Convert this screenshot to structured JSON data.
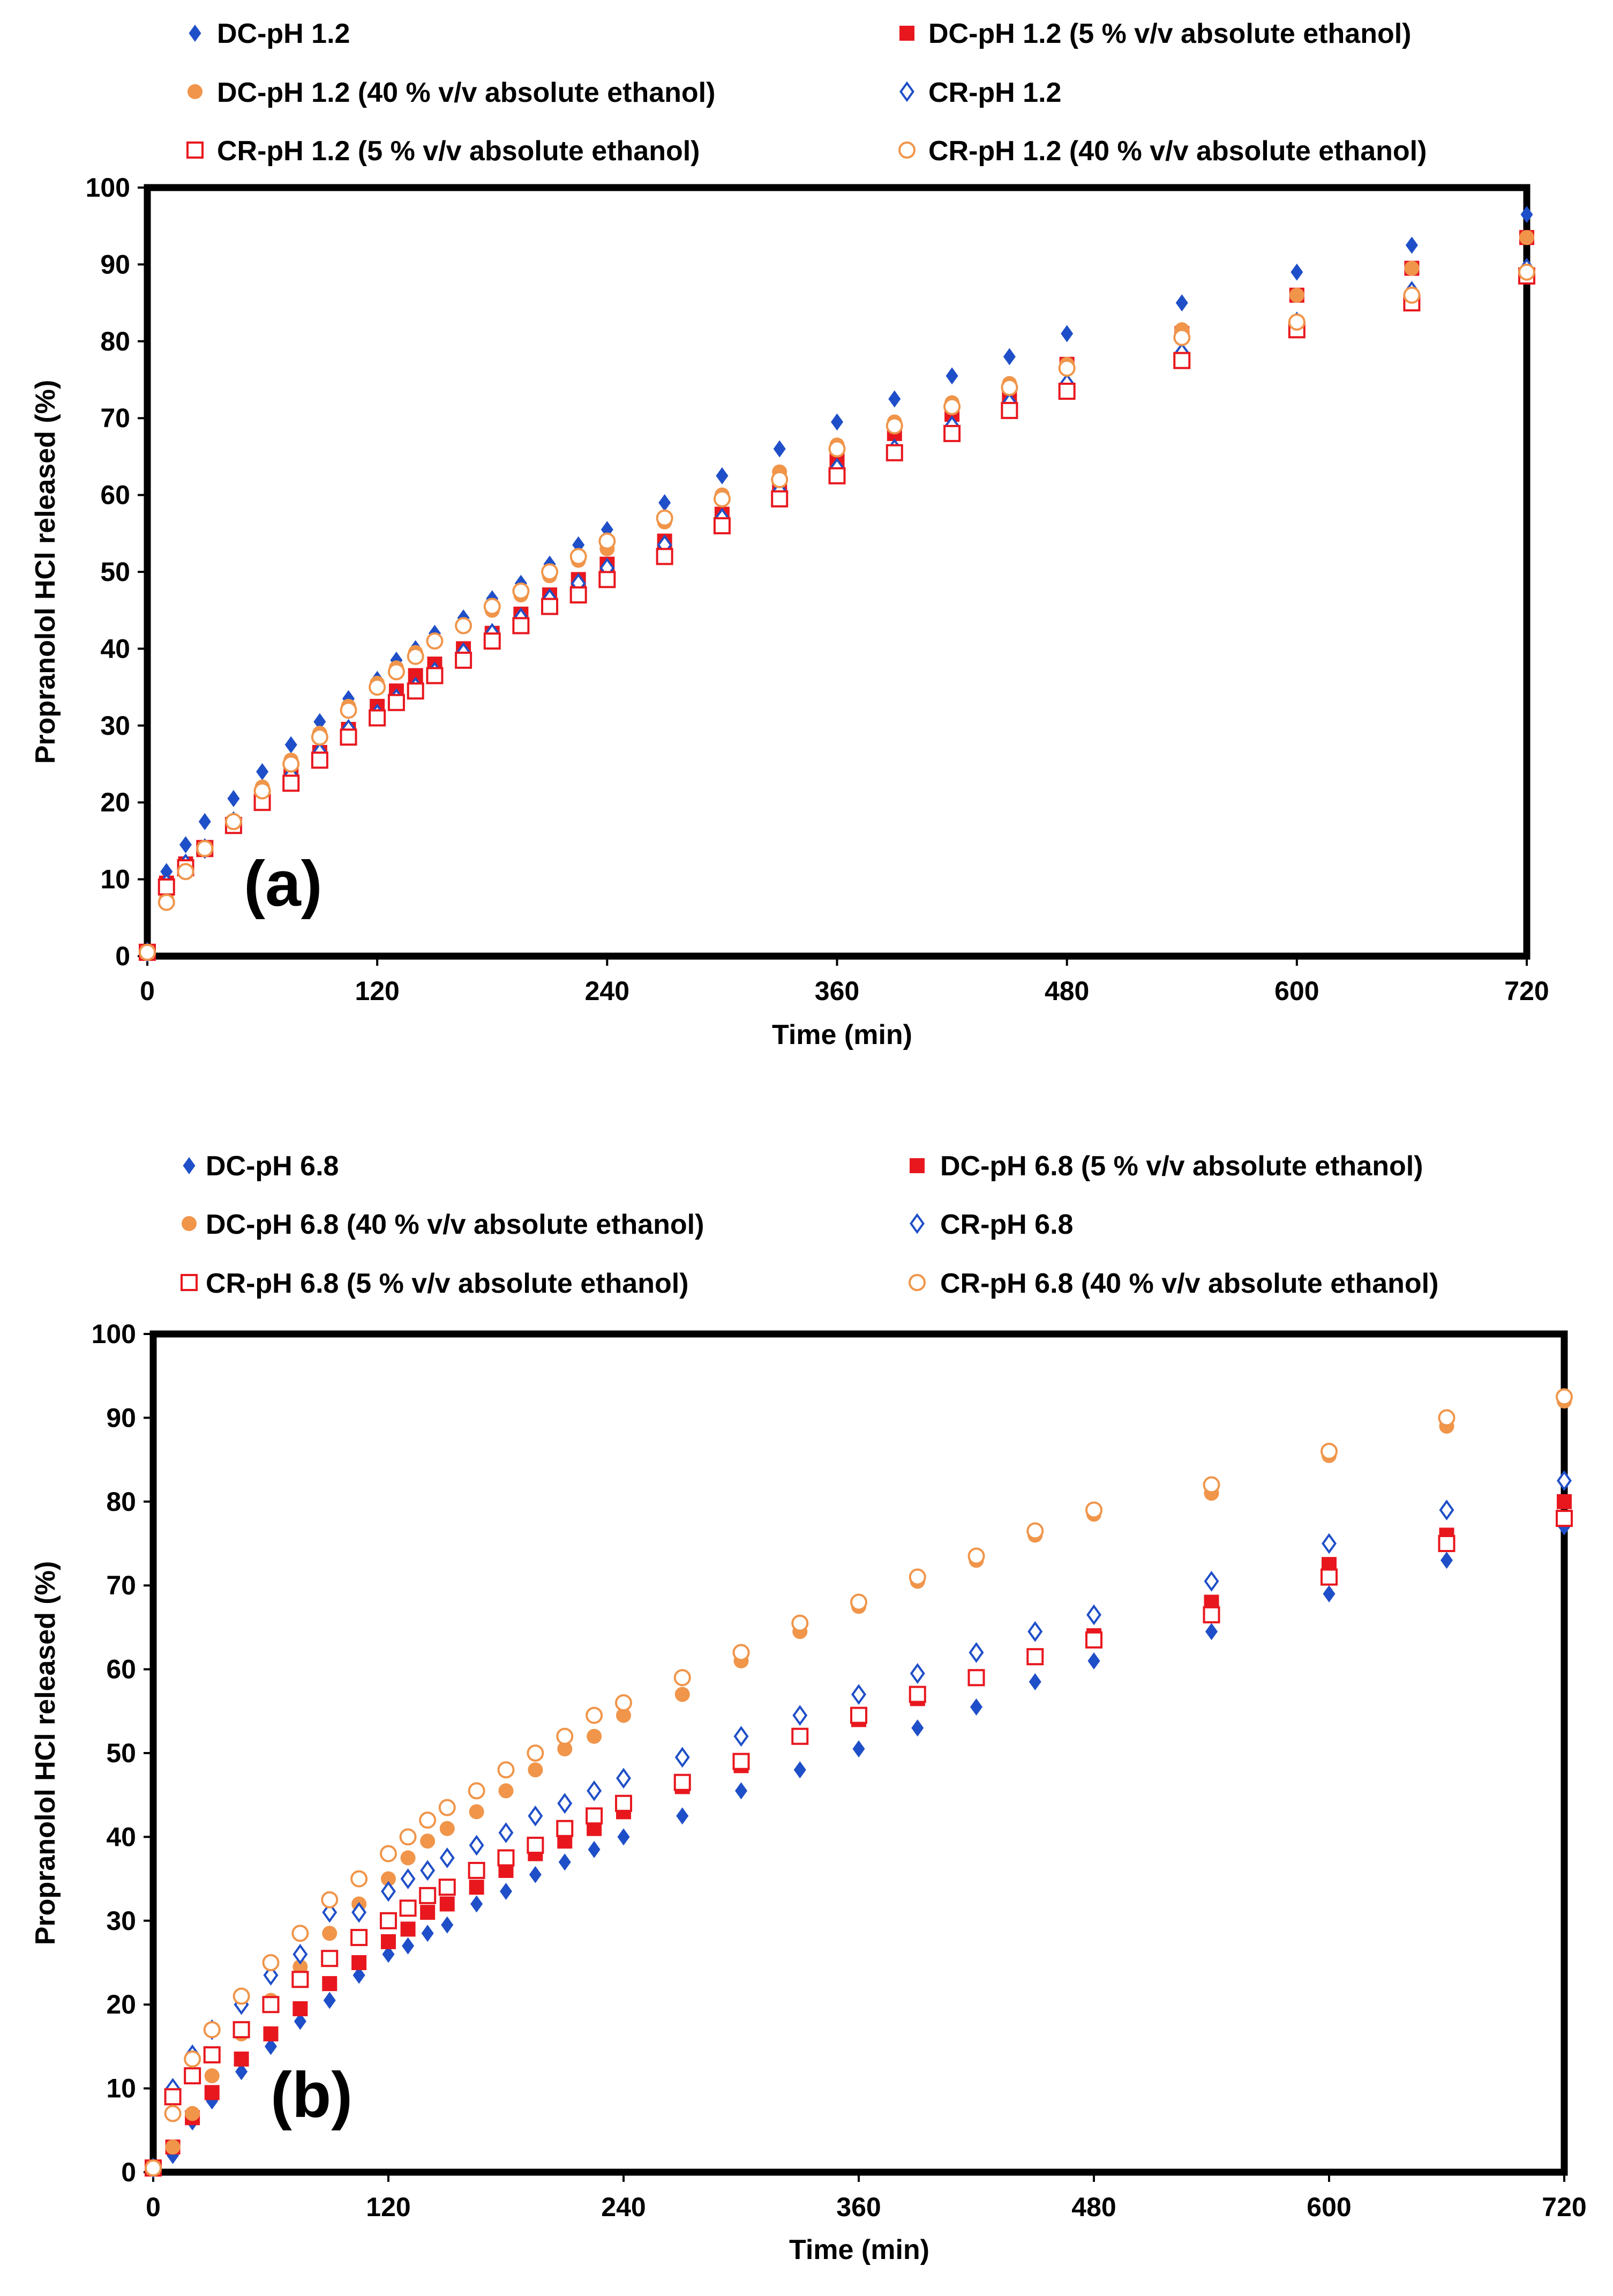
{
  "colors": {
    "blue": "#1F4FC8",
    "red": "#E8171E",
    "orange": "#F0954A",
    "axis": "#000000"
  },
  "chart_data": [
    {
      "type": "scatter",
      "panel_label": "(a)",
      "xlabel": "Time (min)",
      "ylabel": "Propranolol HCl released (%)",
      "xlim": [
        0,
        720
      ],
      "ylim": [
        0,
        100
      ],
      "xticks": [
        "0",
        "120",
        "240",
        "360",
        "480",
        "600",
        "720"
      ],
      "yticks": [
        "0",
        "10",
        "20",
        "30",
        "40",
        "50",
        "60",
        "70",
        "80",
        "90",
        "100"
      ],
      "x": [
        0,
        10,
        20,
        30,
        45,
        60,
        75,
        90,
        105,
        120,
        130,
        140,
        150,
        165,
        180,
        195,
        210,
        225,
        240,
        270,
        300,
        330,
        360,
        390,
        420,
        450,
        480,
        540,
        600,
        660,
        720
      ],
      "series": [
        {
          "name": "DC-pH 1.2",
          "marker": "diamond-filled",
          "color": "#1F4FC8",
          "values": [
            0.5,
            11,
            14.5,
            17.5,
            20.5,
            24,
            27.5,
            30.5,
            33.5,
            36,
            38.5,
            40,
            42,
            44,
            46.5,
            48.5,
            51,
            53.5,
            55.5,
            59,
            62.5,
            66,
            69.5,
            72.5,
            75.5,
            78,
            81,
            85,
            89,
            92.5,
            96.5
          ]
        },
        {
          "name": "DC-pH 1.2 (5 % v/v absolute ethanol)",
          "marker": "square-filled",
          "color": "#E8171E",
          "values": [
            0.5,
            9.5,
            12,
            14,
            17,
            20,
            23.5,
            26.5,
            29.5,
            32.5,
            34.5,
            36.5,
            38,
            40,
            42,
            44.5,
            47,
            49,
            51,
            54,
            57.5,
            61,
            64.5,
            68,
            70.5,
            72.5,
            77,
            81,
            86,
            89.5,
            93.5
          ]
        },
        {
          "name": "DC-pH 1.2 (40 % v/v absolute ethanol)",
          "marker": "circle-filled",
          "color": "#F0954A",
          "values": [
            0.5,
            7.5,
            11,
            14,
            17.5,
            22,
            25.5,
            29,
            32.5,
            35.5,
            37.5,
            39.5,
            41,
            43,
            45,
            47,
            49.5,
            51.5,
            53,
            56.5,
            60,
            63,
            66.5,
            69.5,
            72,
            74.5,
            77,
            81.5,
            86,
            89.5,
            93.5
          ]
        },
        {
          "name": "CR-pH 1.2",
          "marker": "diamond-open",
          "color": "#1F4FC8",
          "values": [
            0.5,
            9.5,
            12,
            14,
            17.5,
            21,
            23.5,
            26.5,
            29.5,
            31.5,
            33.5,
            35,
            37,
            39.5,
            42,
            44,
            46.5,
            48.5,
            50.5,
            53.5,
            57,
            60.5,
            63.5,
            66,
            69,
            72,
            74.5,
            78.5,
            82.5,
            86.5,
            89.5
          ]
        },
        {
          "name": "CR-pH 1.2 (5 % v/v absolute ethanol)",
          "marker": "square-open",
          "color": "#E8171E",
          "values": [
            0.5,
            9,
            11.5,
            14,
            17,
            20,
            22.5,
            25.5,
            28.5,
            31,
            33,
            34.5,
            36.5,
            38.5,
            41,
            43,
            45.5,
            47,
            49,
            52,
            56,
            59.5,
            62.5,
            65.5,
            68,
            71,
            73.5,
            77.5,
            81.5,
            85,
            88.5
          ]
        },
        {
          "name": "CR-pH 1.2 (40 % v/v absolute ethanol)",
          "marker": "circle-open",
          "color": "#F0954A",
          "values": [
            0.5,
            7,
            11,
            14,
            17.5,
            21.5,
            25,
            28.5,
            32,
            35,
            37,
            39,
            41,
            43,
            45.5,
            47.5,
            50,
            52,
            54,
            57,
            59.5,
            62,
            66,
            69,
            71.5,
            74,
            76.5,
            80.5,
            82.5,
            86,
            89
          ]
        }
      ]
    },
    {
      "type": "scatter",
      "panel_label": "(b)",
      "xlabel": "Time (min)",
      "ylabel": "Propranolol HCl released (%)",
      "xlim": [
        0,
        720
      ],
      "ylim": [
        0,
        100
      ],
      "xticks": [
        "0",
        "120",
        "240",
        "360",
        "480",
        "600",
        "720"
      ],
      "yticks": [
        "0",
        "10",
        "20",
        "30",
        "40",
        "50",
        "60",
        "70",
        "80",
        "90",
        "100"
      ],
      "x": [
        0,
        10,
        20,
        30,
        45,
        60,
        75,
        90,
        105,
        120,
        130,
        140,
        150,
        165,
        180,
        195,
        210,
        225,
        240,
        270,
        300,
        330,
        360,
        390,
        420,
        450,
        480,
        540,
        600,
        660,
        720
      ],
      "series": [
        {
          "name": "DC-pH 6.8",
          "marker": "diamond-filled",
          "color": "#1F4FC8",
          "values": [
            0.5,
            2,
            6,
            8.5,
            12,
            15,
            18,
            20.5,
            23.5,
            26,
            27,
            28.5,
            29.5,
            32,
            33.5,
            35.5,
            37,
            38.5,
            40,
            42.5,
            45.5,
            48,
            50.5,
            53,
            55.5,
            58.5,
            61,
            64.5,
            69,
            73,
            77
          ]
        },
        {
          "name": "DC-pH 6.8 (5 % v/v absolute ethanol)",
          "marker": "square-filled",
          "color": "#E8171E",
          "values": [
            0.5,
            3,
            6.5,
            9.5,
            13.5,
            16.5,
            19.5,
            22.5,
            25,
            27.5,
            29,
            31,
            32,
            34,
            36,
            38,
            39.5,
            41,
            43,
            46,
            48.5,
            52,
            54,
            56.5,
            59,
            61.5,
            64,
            68,
            72.5,
            76,
            80
          ]
        },
        {
          "name": "DC-pH 6.8 (40 % v/v absolute ethanol)",
          "marker": "circle-filled",
          "color": "#F0954A",
          "values": [
            0.5,
            3,
            7,
            11.5,
            16.5,
            20.5,
            24.5,
            28.5,
            32,
            35,
            37.5,
            39.5,
            41,
            43,
            45.5,
            48,
            50.5,
            52,
            54.5,
            57,
            61,
            64.5,
            67.5,
            70.5,
            73,
            76,
            78.5,
            81,
            85.5,
            89,
            92
          ]
        },
        {
          "name": "CR-pH 6.8",
          "marker": "diamond-open",
          "color": "#1F4FC8",
          "values": [
            0.5,
            10,
            14,
            17,
            20,
            23.5,
            26,
            31,
            31,
            33.5,
            35,
            36,
            37.5,
            39,
            40.5,
            42.5,
            44,
            45.5,
            47,
            49.5,
            52,
            54.5,
            57,
            59.5,
            62,
            64.5,
            66.5,
            70.5,
            75,
            79,
            82.5
          ]
        },
        {
          "name": "CR-pH 6.8 (5 % v/v absolute ethanol)",
          "marker": "square-open",
          "color": "#E8171E",
          "values": [
            0.5,
            9,
            11.5,
            14,
            17,
            20,
            23,
            25.5,
            28,
            30,
            31.5,
            33,
            34,
            36,
            37.5,
            39,
            41,
            42.5,
            44,
            46.5,
            49,
            52,
            54.5,
            57,
            59,
            61.5,
            63.5,
            66.5,
            71,
            75,
            78
          ]
        },
        {
          "name": "CR-pH 6.8 (40 % v/v absolute ethanol)",
          "marker": "circle-open",
          "color": "#F0954A",
          "values": [
            0.5,
            7,
            13.5,
            17,
            21,
            25,
            28.5,
            32.5,
            35,
            38,
            40,
            42,
            43.5,
            45.5,
            48,
            50,
            52,
            54.5,
            56,
            59,
            62,
            65.5,
            68,
            71,
            73.5,
            76.5,
            79,
            82,
            86,
            90,
            92.5
          ]
        }
      ]
    }
  ]
}
